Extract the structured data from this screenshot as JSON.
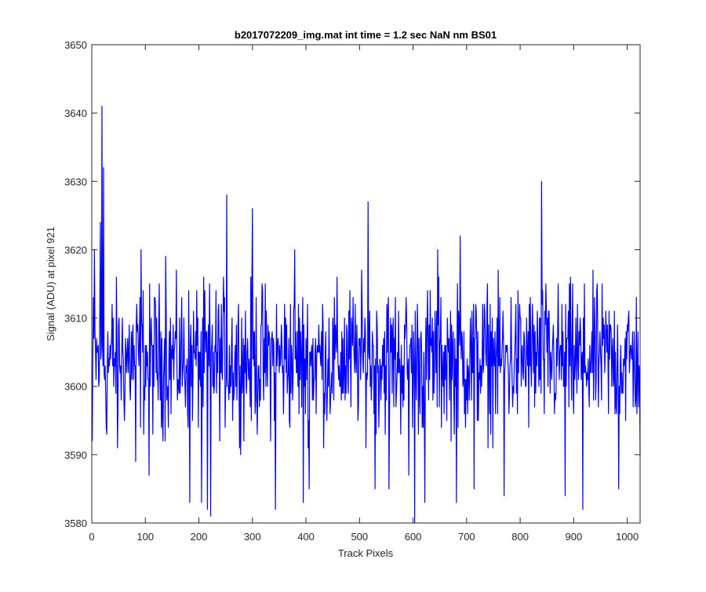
{
  "chart_data": {
    "type": "line",
    "title": "b2017072209_img.mat int time = 1.2 sec  NaN nm BS01",
    "xlabel": "Track Pixels",
    "ylabel": "Signal (ADU) at pixel 921",
    "xlim": [
      0,
      1024
    ],
    "ylim": [
      3580,
      3650
    ],
    "x_ticks": [
      0,
      100,
      200,
      300,
      400,
      500,
      600,
      700,
      800,
      900,
      1000
    ],
    "y_ticks": [
      3580,
      3590,
      3600,
      3610,
      3620,
      3630,
      3640,
      3650
    ],
    "grid": false,
    "legend": "none",
    "series": [
      {
        "color": "#0000ff",
        "x_start": 1,
        "x_end": 1024,
        "baseline": 3604,
        "noise_min": 3590,
        "noise_max": 3617,
        "peaks": [
          {
            "x": 1,
            "y": 3592
          },
          {
            "x": 5,
            "y": 3620
          },
          {
            "x": 16,
            "y": 3624
          },
          {
            "x": 19,
            "y": 3641
          },
          {
            "x": 22,
            "y": 3632
          },
          {
            "x": 28,
            "y": 3593
          },
          {
            "x": 48,
            "y": 3591
          },
          {
            "x": 82,
            "y": 3589
          },
          {
            "x": 92,
            "y": 3620
          },
          {
            "x": 107,
            "y": 3587
          },
          {
            "x": 138,
            "y": 3619
          },
          {
            "x": 183,
            "y": 3583
          },
          {
            "x": 205,
            "y": 3583
          },
          {
            "x": 216,
            "y": 3582
          },
          {
            "x": 222,
            "y": 3581
          },
          {
            "x": 252,
            "y": 3628
          },
          {
            "x": 300,
            "y": 3626
          },
          {
            "x": 343,
            "y": 3582
          },
          {
            "x": 379,
            "y": 3620
          },
          {
            "x": 395,
            "y": 3583
          },
          {
            "x": 406,
            "y": 3585
          },
          {
            "x": 516,
            "y": 3627
          },
          {
            "x": 529,
            "y": 3585
          },
          {
            "x": 555,
            "y": 3585
          },
          {
            "x": 592,
            "y": 3587
          },
          {
            "x": 603,
            "y": 3580
          },
          {
            "x": 622,
            "y": 3583
          },
          {
            "x": 646,
            "y": 3620
          },
          {
            "x": 681,
            "y": 3583
          },
          {
            "x": 688,
            "y": 3622
          },
          {
            "x": 714,
            "y": 3585
          },
          {
            "x": 770,
            "y": 3584
          },
          {
            "x": 840,
            "y": 3630
          },
          {
            "x": 884,
            "y": 3584
          },
          {
            "x": 917,
            "y": 3582
          },
          {
            "x": 984,
            "y": 3585
          },
          {
            "x": 1024,
            "y": 3590
          }
        ]
      }
    ]
  }
}
